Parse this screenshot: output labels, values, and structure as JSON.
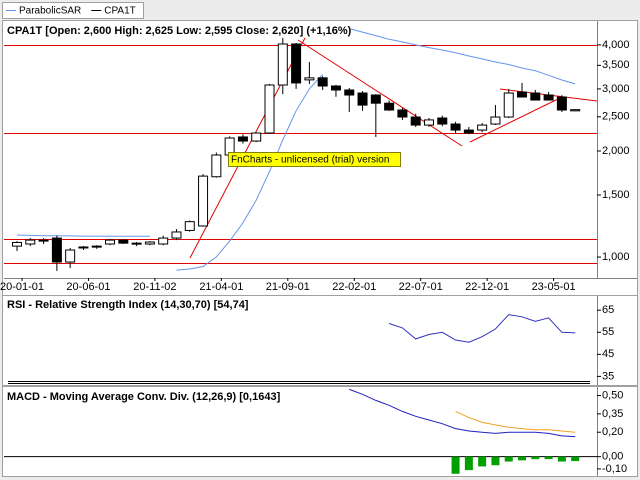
{
  "chart_data": [
    {
      "type": "candlestick",
      "title": "CPA1T [Open: 2,600  High: 2,625  Low: 2,595  Close: 2,620] (+1,16%)",
      "annotation": "FnCharts - unlicensed (trial) version",
      "categories": [
        "20-01-01",
        null,
        null,
        null,
        null,
        "20-06-01",
        null,
        null,
        null,
        null,
        "20-11-02",
        null,
        null,
        null,
        null,
        "21-04-01",
        null,
        null,
        null,
        null,
        "21-09-01",
        null,
        null,
        null,
        null,
        "22-02-01",
        null,
        null,
        null,
        null,
        "22-07-01",
        null,
        null,
        null,
        null,
        "22-12-01",
        null,
        null,
        null,
        null,
        "23-05-01",
        null,
        null
      ],
      "series": [
        {
          "name": "ParabolicSAR",
          "color": "#6495ed",
          "values": [
            1155,
            1152,
            1150,
            1150,
            1148,
            1147,
            1147,
            1146,
            1146,
            1145,
            1145,
            null,
            918,
            925,
            940,
            1000,
            1110,
            1250,
            1450,
            1750,
            2150,
            2600,
            3000,
            3300,
            null,
            4450,
            4350,
            4250,
            4150,
            4080,
            4000,
            3930,
            3870,
            3800,
            3720,
            3650,
            3577,
            3520,
            3440,
            3380,
            3280,
            3180,
            3100
          ]
        },
        {
          "name": "CPA1T",
          "color": "#000000",
          "open": [
            1074,
            1089,
            1117,
            1132,
            968,
            1061,
            1068,
            1089,
            1117,
            1089,
            1089,
            1089,
            1132,
            1190,
            1225,
            1690,
            1948,
            2192,
            2134,
            2249,
            3078,
            4024,
            3183,
            3225,
            3058,
            2979,
            2921,
            2883,
            2733,
            2614,
            2497,
            2369,
            2481,
            2385,
            2293,
            2293,
            2385,
            2497,
            2940,
            2921,
            2883,
            2846,
            2600
          ],
          "high": [
            1110,
            1132,
            1132,
            1150,
            1061,
            1075,
            1080,
            1125,
            1125,
            1103,
            1110,
            1150,
            1200,
            1270,
            1720,
            1980,
            2200,
            2230,
            2260,
            3100,
            4183,
            4050,
            3577,
            3260,
            3080,
            3018,
            2960,
            2900,
            2780,
            2650,
            2550,
            2480,
            2520,
            2420,
            2340,
            2400,
            2700,
            3000,
            3120,
            2980,
            2940,
            2880,
            2625
          ],
          "low": [
            1040,
            1074,
            1089,
            913,
            931,
            1047,
            1055,
            1080,
            1089,
            1074,
            1080,
            1080,
            1117,
            1180,
            1220,
            1680,
            1940,
            2100,
            2120,
            2240,
            2900,
            3000,
            3100,
            2980,
            2850,
            2580,
            2600,
            2192,
            2600,
            2450,
            2340,
            2340,
            2350,
            2250,
            2230,
            2260,
            2370,
            2480,
            2880,
            2800,
            2780,
            2580,
            2595
          ],
          "close": [
            1100,
            1117,
            1110,
            968,
            1047,
            1068,
            1074,
            1117,
            1095,
            1095,
            1103,
            1132,
            1178,
            1260,
            1697,
            1948,
            2177,
            2134,
            2249,
            3078,
            4024,
            3120,
            3225,
            3058,
            2979,
            2883,
            2699,
            2733,
            2614,
            2497,
            2369,
            2450,
            2385,
            2293,
            2250,
            2369,
            2497,
            2921,
            2846,
            2790,
            2790,
            2614,
            2620
          ]
        }
      ],
      "log_scale": true,
      "ylim": [
        872,
        4646
      ],
      "yticks": [
        {
          "value": 1000,
          "label": "1,000"
        },
        {
          "value": 1500,
          "label": "1,500"
        },
        {
          "value": 2000,
          "label": "2,000"
        },
        {
          "value": 2500,
          "label": "2,500"
        },
        {
          "value": 3000,
          "label": "3,000"
        },
        {
          "value": 3500,
          "label": "3,500"
        },
        {
          "value": 4000,
          "label": "4,000"
        }
      ],
      "legend": "top-left"
    },
    {
      "type": "line",
      "title": "RSI - Relative Strength Index (14,30,70) [54,74]",
      "series": [
        {
          "color": "#3030c0",
          "values": [
            null,
            null,
            null,
            null,
            null,
            null,
            null,
            null,
            null,
            null,
            null,
            null,
            null,
            null,
            null,
            null,
            null,
            null,
            null,
            null,
            null,
            null,
            null,
            null,
            null,
            null,
            null,
            null,
            59,
            57,
            52,
            54,
            55,
            51.5,
            50.5,
            53,
            56.5,
            63,
            62,
            60,
            61.5,
            55,
            54.74
          ]
        }
      ],
      "ylim": [
        32,
        71
      ],
      "yticks": [
        35,
        45,
        55,
        65
      ]
    },
    {
      "type": "line",
      "title": "MACD - Moving Average Conv. Div. (12,26,9) [0,1643]",
      "series": [
        {
          "color": "#2020c0",
          "values": [
            null,
            null,
            null,
            null,
            null,
            null,
            null,
            null,
            null,
            null,
            null,
            null,
            null,
            null,
            null,
            null,
            null,
            null,
            null,
            null,
            null,
            null,
            null,
            null,
            null,
            0.55,
            0.51,
            0.46,
            0.42,
            0.37,
            0.33,
            0.3,
            0.27,
            0.23,
            0.21,
            0.2,
            0.19,
            0.2,
            0.2,
            0.2,
            0.19,
            0.17,
            0.1643
          ]
        },
        {
          "color": "#f0a020",
          "values": [
            null,
            null,
            null,
            null,
            null,
            null,
            null,
            null,
            null,
            null,
            null,
            null,
            null,
            null,
            null,
            null,
            null,
            null,
            null,
            null,
            null,
            null,
            null,
            null,
            null,
            null,
            null,
            null,
            null,
            null,
            null,
            null,
            null,
            0.37,
            0.32,
            0.28,
            0.26,
            0.24,
            0.23,
            0.22,
            0.22,
            0.21,
            0.2
          ]
        },
        {
          "color": "#00a000",
          "style": "bar",
          "values": [
            null,
            null,
            null,
            null,
            null,
            null,
            null,
            null,
            null,
            null,
            null,
            null,
            null,
            null,
            null,
            null,
            null,
            null,
            null,
            null,
            null,
            null,
            null,
            null,
            null,
            null,
            null,
            null,
            null,
            null,
            null,
            null,
            null,
            -0.14,
            -0.11,
            -0.08,
            -0.07,
            -0.04,
            -0.03,
            -0.02,
            -0.02,
            -0.04,
            -0.036
          ]
        }
      ],
      "ylim": [
        -0.15,
        0.57
      ],
      "yticks": [
        {
          "value": 0.5,
          "label": "0,50"
        },
        {
          "value": 0.35,
          "label": "0,35"
        },
        {
          "value": 0.2,
          "label": "0,20"
        },
        {
          "value": 0,
          "label": "0,00"
        },
        {
          "value": -0.1,
          "label": "-0,10"
        }
      ]
    }
  ]
}
